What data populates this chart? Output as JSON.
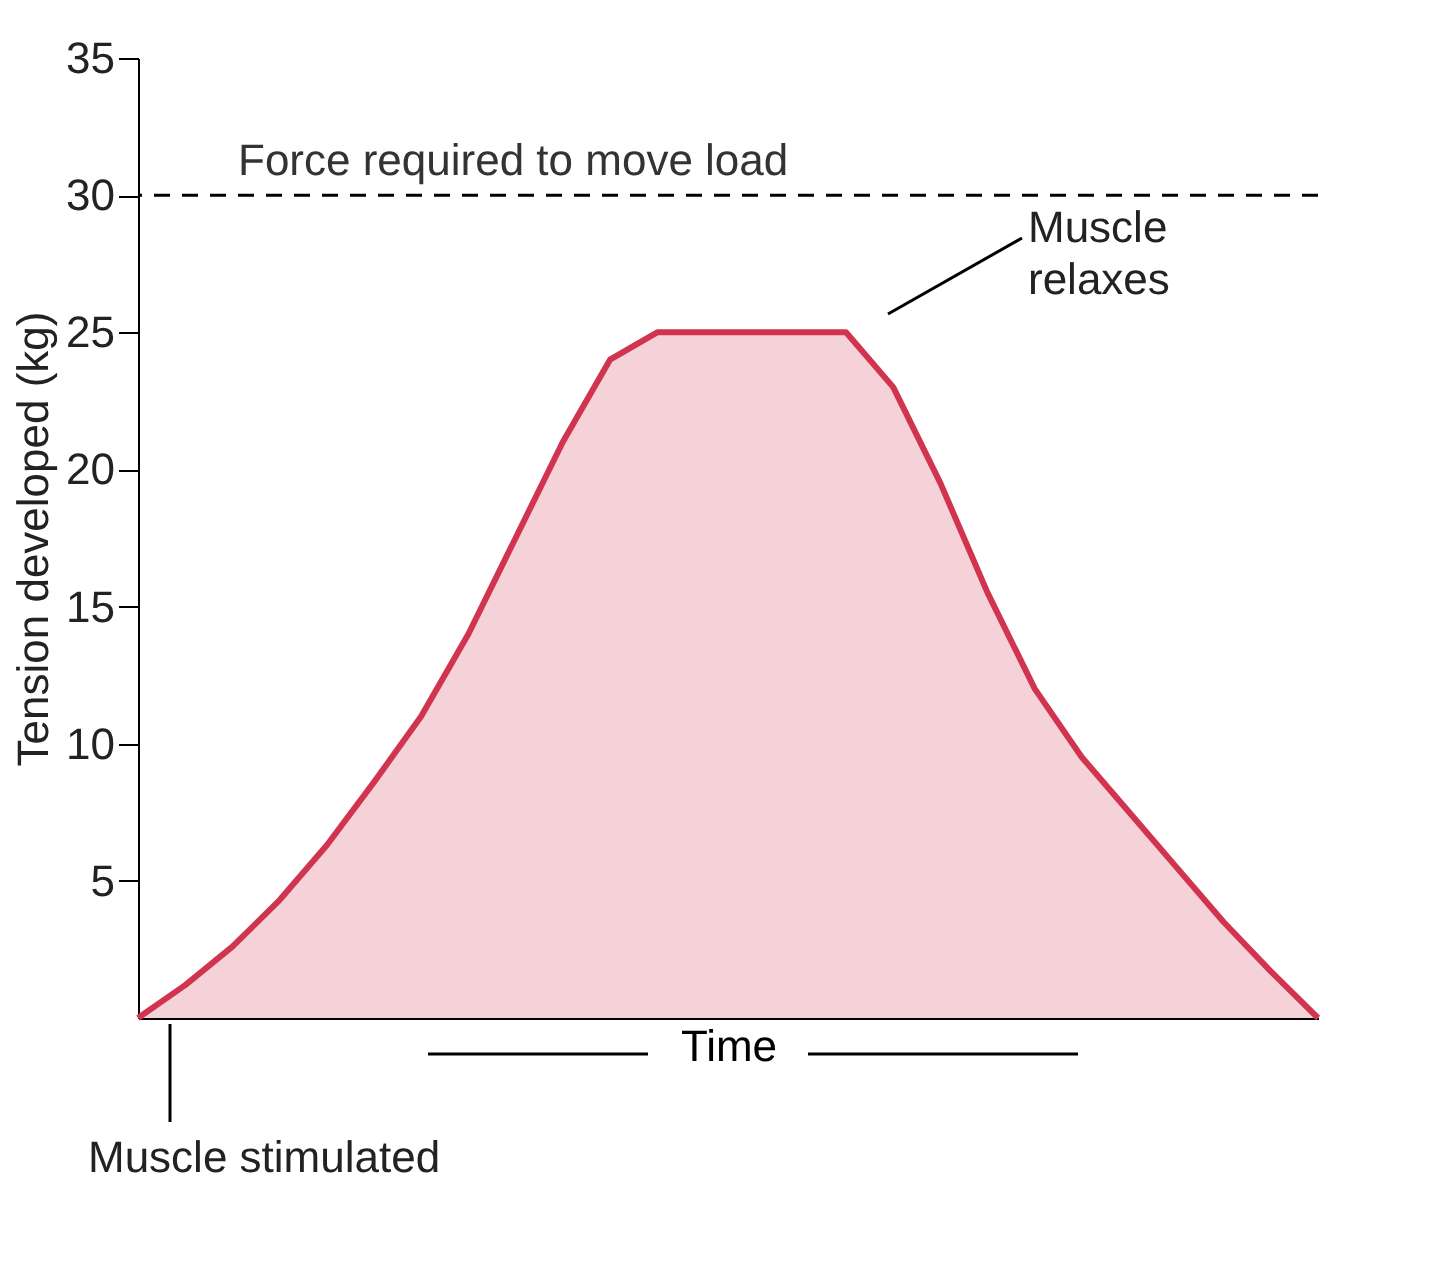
{
  "chart_data": {
    "type": "area",
    "xlabel": "Time",
    "ylabel": "Tension developed (kg)",
    "categories": [
      null,
      null,
      null,
      null,
      null,
      null,
      null,
      null,
      null,
      null,
      null,
      null,
      null,
      null,
      null,
      null,
      null,
      null,
      null,
      null,
      null,
      null,
      null,
      null,
      null,
      null
    ],
    "series": [
      {
        "color": "#d0344f",
        "values": [
          0,
          1.2,
          2.6,
          4.3,
          6.3,
          8.6,
          11,
          14,
          17.5,
          21,
          24,
          25,
          25,
          25,
          25,
          25,
          23,
          19.5,
          15.5,
          12,
          9.5,
          7.5,
          5.5,
          3.5,
          1.7,
          0
        ]
      }
    ],
    "ylim": [
      0,
      35
    ],
    "yticks": [
      5,
      10,
      15,
      20,
      25,
      30,
      35
    ],
    "grid": false,
    "ref_lines": [
      {
        "axis": "y",
        "value": 30,
        "label": "Force required to move load",
        "line_style": "dashed",
        "color": "#000000"
      }
    ],
    "annotations": [
      "Muscle relaxes",
      "Muscle stimulated"
    ]
  }
}
